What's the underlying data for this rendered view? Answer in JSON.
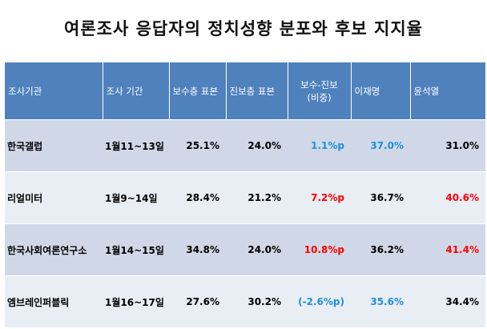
{
  "title": "여론조사 응답자의 정치성향 분포와 후보 지지율",
  "table": {
    "headers": {
      "agency": "조사기관",
      "period": "조사 기간",
      "conservative": "보수층 표본",
      "progressive": "진보층 표본",
      "gap_line1": "보수-진보",
      "gap_line2": "(비중)",
      "lee": "이재명",
      "yoon": "윤석열"
    },
    "rows": [
      {
        "agency": "한국갤럽",
        "period": "1월11~13일",
        "conservative": "25.1%",
        "progressive": "24.0%",
        "gap": "1.1%p",
        "lee": "37.0%",
        "yoon": "31.0%"
      },
      {
        "agency": "리얼미터",
        "period": "1월9~14일",
        "conservative": "28.4%",
        "progressive": "21.2%",
        "gap": "7.2%p",
        "lee": "36.7%",
        "yoon": "40.6%"
      },
      {
        "agency": "한국사회여론연구소",
        "period": "1월14~15일",
        "conservative": "34.8%",
        "progressive": "24.0%",
        "gap": "10.8%p",
        "lee": "36.2%",
        "yoon": "41.4%"
      },
      {
        "agency": "엠브레인퍼블릭",
        "period": "1월16~17일",
        "conservative": "27.6%",
        "progressive": "30.2%",
        "gap": "(-2.6%p)",
        "lee": "35.6%",
        "yoon": "34.4%"
      }
    ]
  },
  "colors": {
    "header_bg": "#4f81bd",
    "row_odd": "#d0d8e8",
    "row_even": "#e9edf4",
    "highlight_blue": "#1f8fd6",
    "highlight_red": "#ff0000"
  }
}
